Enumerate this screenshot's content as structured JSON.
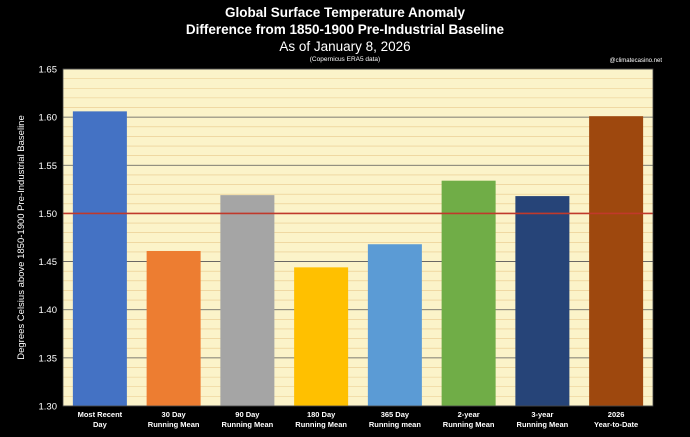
{
  "chart_data": {
    "type": "bar",
    "title": "Global Surface Temperature Anomaly",
    "subtitle": "Difference from 1850-1900 Pre-Industrial Baseline",
    "date_line": "As of January 8, 2026",
    "source": "(Copernicus ERA5 data)",
    "watermark": "@climatecasino.net",
    "ylabel": "Degrees Celsius above 1850-1900 Pre-Industrial Baseline",
    "xlabel": "",
    "ylim": [
      1.3,
      1.65
    ],
    "yticks": [
      "1.30",
      "1.35",
      "1.40",
      "1.45",
      "1.50",
      "1.55",
      "1.60",
      "1.65"
    ],
    "reference_line": 1.5,
    "reference_color": "#c0392b",
    "plot_background": "#fbf3c9",
    "categories": [
      [
        "Most Recent",
        "Day"
      ],
      [
        "30 Day",
        "Running Mean"
      ],
      [
        "90 Day",
        "Running Mean"
      ],
      [
        "180 Day",
        "Running Mean"
      ],
      [
        "365 Day",
        "Running mean"
      ],
      [
        "2-year",
        "Running Mean"
      ],
      [
        "3-year",
        "Running Mean"
      ],
      [
        "2026",
        "Year-to-Date"
      ]
    ],
    "values": [
      1.606,
      1.461,
      1.519,
      1.444,
      1.468,
      1.534,
      1.518,
      1.601
    ],
    "colors": [
      "#4472c4",
      "#ed7d31",
      "#a5a5a5",
      "#ffc000",
      "#5b9bd5",
      "#70ad47",
      "#264478",
      "#9e480e"
    ]
  }
}
